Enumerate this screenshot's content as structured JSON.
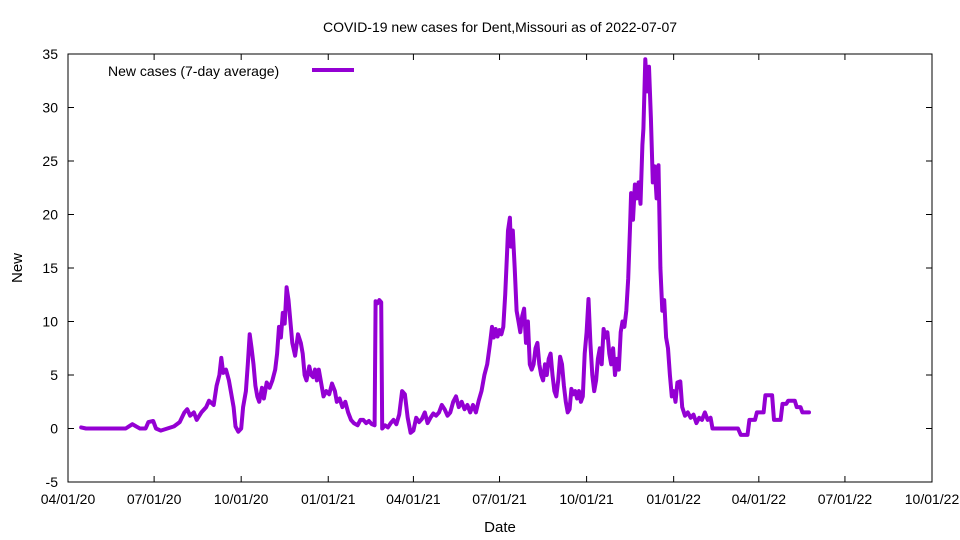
{
  "chart_data": {
    "type": "line",
    "title": "COVID-19 new cases for Dent,Missouri as of 2022-07-07",
    "xlabel": "Date",
    "ylabel": "New",
    "xlim": [
      "2020-04-01",
      "2022-10-01"
    ],
    "ylim": [
      -5,
      35
    ],
    "x_ticks": [
      "04/01/20",
      "07/01/20",
      "10/01/20",
      "01/01/21",
      "04/01/21",
      "07/01/21",
      "10/01/21",
      "01/01/22",
      "04/01/22",
      "07/01/22",
      "10/01/22"
    ],
    "y_ticks": [
      "-5",
      "0",
      "5",
      "10",
      "15",
      "20",
      "25",
      "30",
      "35"
    ],
    "grid": false,
    "legend_position": "top-left",
    "series": [
      {
        "name": "New cases (7-day average)",
        "color": "#9400D3",
        "points": [
          [
            "2020-04-15",
            0.1
          ],
          [
            "2020-04-20",
            0.0
          ],
          [
            "2020-05-01",
            0.0
          ],
          [
            "2020-05-15",
            0.0
          ],
          [
            "2020-06-01",
            0.0
          ],
          [
            "2020-06-08",
            0.4
          ],
          [
            "2020-06-12",
            0.2
          ],
          [
            "2020-06-16",
            0.0
          ],
          [
            "2020-06-22",
            0.0
          ],
          [
            "2020-06-25",
            0.6
          ],
          [
            "2020-06-30",
            0.7
          ],
          [
            "2020-07-03",
            0.0
          ],
          [
            "2020-07-08",
            -0.2
          ],
          [
            "2020-07-15",
            0.0
          ],
          [
            "2020-07-22",
            0.2
          ],
          [
            "2020-07-28",
            0.6
          ],
          [
            "2020-08-02",
            1.5
          ],
          [
            "2020-08-05",
            1.8
          ],
          [
            "2020-08-08",
            1.2
          ],
          [
            "2020-08-12",
            1.5
          ],
          [
            "2020-08-15",
            0.8
          ],
          [
            "2020-08-20",
            1.5
          ],
          [
            "2020-08-25",
            2.0
          ],
          [
            "2020-08-28",
            2.6
          ],
          [
            "2020-09-02",
            2.2
          ],
          [
            "2020-09-05",
            4.0
          ],
          [
            "2020-09-08",
            5.0
          ],
          [
            "2020-09-10",
            6.6
          ],
          [
            "2020-09-12",
            5.2
          ],
          [
            "2020-09-15",
            5.5
          ],
          [
            "2020-09-18",
            4.5
          ],
          [
            "2020-09-20",
            3.5
          ],
          [
            "2020-09-23",
            2.0
          ],
          [
            "2020-09-25",
            0.2
          ],
          [
            "2020-09-28",
            -0.3
          ],
          [
            "2020-10-01",
            0.0
          ],
          [
            "2020-10-03",
            2.0
          ],
          [
            "2020-10-06",
            3.5
          ],
          [
            "2020-10-08",
            6.0
          ],
          [
            "2020-10-10",
            8.8
          ],
          [
            "2020-10-12",
            7.5
          ],
          [
            "2020-10-14",
            6.0
          ],
          [
            "2020-10-16",
            4.0
          ],
          [
            "2020-10-18",
            3.0
          ],
          [
            "2020-10-20",
            2.5
          ],
          [
            "2020-10-23",
            3.8
          ],
          [
            "2020-10-25",
            2.8
          ],
          [
            "2020-10-28",
            4.3
          ],
          [
            "2020-10-31",
            3.8
          ],
          [
            "2020-11-03",
            4.5
          ],
          [
            "2020-11-06",
            5.5
          ],
          [
            "2020-11-08",
            7.0
          ],
          [
            "2020-11-10",
            9.5
          ],
          [
            "2020-11-12",
            8.5
          ],
          [
            "2020-11-14",
            10.8
          ],
          [
            "2020-11-16",
            9.8
          ],
          [
            "2020-11-18",
            13.2
          ],
          [
            "2020-11-20",
            12.0
          ],
          [
            "2020-11-22",
            10.0
          ],
          [
            "2020-11-24",
            8.0
          ],
          [
            "2020-11-27",
            6.8
          ],
          [
            "2020-11-30",
            8.8
          ],
          [
            "2020-12-03",
            8.0
          ],
          [
            "2020-12-05",
            7.0
          ],
          [
            "2020-12-07",
            5.0
          ],
          [
            "2020-12-09",
            4.5
          ],
          [
            "2020-12-12",
            5.8
          ],
          [
            "2020-12-14",
            5.0
          ],
          [
            "2020-12-16",
            4.8
          ],
          [
            "2020-12-18",
            5.5
          ],
          [
            "2020-12-20",
            4.5
          ],
          [
            "2020-12-22",
            5.5
          ],
          [
            "2020-12-24",
            4.5
          ],
          [
            "2020-12-27",
            3.0
          ],
          [
            "2020-12-30",
            3.5
          ],
          [
            "2021-01-02",
            3.2
          ],
          [
            "2021-01-05",
            4.2
          ],
          [
            "2021-01-08",
            3.5
          ],
          [
            "2021-01-10",
            2.5
          ],
          [
            "2021-01-13",
            2.8
          ],
          [
            "2021-01-16",
            2.0
          ],
          [
            "2021-01-19",
            2.5
          ],
          [
            "2021-01-22",
            1.5
          ],
          [
            "2021-01-25",
            0.8
          ],
          [
            "2021-01-28",
            0.5
          ],
          [
            "2021-02-01",
            0.3
          ],
          [
            "2021-02-04",
            0.8
          ],
          [
            "2021-02-07",
            0.8
          ],
          [
            "2021-02-10",
            0.5
          ],
          [
            "2021-02-13",
            0.7
          ],
          [
            "2021-02-16",
            0.4
          ],
          [
            "2021-02-19",
            0.3
          ],
          [
            "2021-02-20",
            11.9
          ],
          [
            "2021-02-22",
            11.7
          ],
          [
            "2021-02-24",
            12.0
          ],
          [
            "2021-02-26",
            11.8
          ],
          [
            "2021-02-27",
            0.0
          ],
          [
            "2021-03-02",
            0.3
          ],
          [
            "2021-03-05",
            0.1
          ],
          [
            "2021-03-08",
            0.5
          ],
          [
            "2021-03-11",
            0.8
          ],
          [
            "2021-03-14",
            0.4
          ],
          [
            "2021-03-17",
            1.3
          ],
          [
            "2021-03-20",
            3.5
          ],
          [
            "2021-03-23",
            3.2
          ],
          [
            "2021-03-26",
            1.0
          ],
          [
            "2021-03-29",
            -0.4
          ],
          [
            "2021-04-01",
            -0.2
          ],
          [
            "2021-04-04",
            1.0
          ],
          [
            "2021-04-07",
            0.6
          ],
          [
            "2021-04-10",
            0.9
          ],
          [
            "2021-04-13",
            1.5
          ],
          [
            "2021-04-16",
            0.5
          ],
          [
            "2021-04-19",
            1.0
          ],
          [
            "2021-04-22",
            1.4
          ],
          [
            "2021-04-25",
            1.2
          ],
          [
            "2021-04-28",
            1.5
          ],
          [
            "2021-05-01",
            2.2
          ],
          [
            "2021-05-04",
            1.8
          ],
          [
            "2021-05-07",
            1.2
          ],
          [
            "2021-05-10",
            1.5
          ],
          [
            "2021-05-13",
            2.5
          ],
          [
            "2021-05-16",
            3.0
          ],
          [
            "2021-05-19",
            2.0
          ],
          [
            "2021-05-22",
            2.5
          ],
          [
            "2021-05-25",
            1.8
          ],
          [
            "2021-05-28",
            2.2
          ],
          [
            "2021-05-31",
            1.5
          ],
          [
            "2021-06-03",
            2.2
          ],
          [
            "2021-06-06",
            1.5
          ],
          [
            "2021-06-09",
            2.6
          ],
          [
            "2021-06-12",
            3.5
          ],
          [
            "2021-06-15",
            5.0
          ],
          [
            "2021-06-18",
            6.0
          ],
          [
            "2021-06-21",
            8.0
          ],
          [
            "2021-06-23",
            9.5
          ],
          [
            "2021-06-25",
            8.5
          ],
          [
            "2021-06-27",
            9.3
          ],
          [
            "2021-06-29",
            8.6
          ],
          [
            "2021-07-01",
            9.2
          ],
          [
            "2021-07-03",
            8.8
          ],
          [
            "2021-07-05",
            9.5
          ],
          [
            "2021-07-07",
            12.5
          ],
          [
            "2021-07-09",
            16.5
          ],
          [
            "2021-07-10",
            18.5
          ],
          [
            "2021-07-12",
            19.7
          ],
          [
            "2021-07-13",
            17.0
          ],
          [
            "2021-07-15",
            18.5
          ],
          [
            "2021-07-17",
            15.0
          ],
          [
            "2021-07-19",
            11.0
          ],
          [
            "2021-07-21",
            10.0
          ],
          [
            "2021-07-23",
            9.0
          ],
          [
            "2021-07-25",
            10.5
          ],
          [
            "2021-07-27",
            11.2
          ],
          [
            "2021-07-29",
            8.0
          ],
          [
            "2021-07-31",
            10.0
          ],
          [
            "2021-08-02",
            6.0
          ],
          [
            "2021-08-04",
            5.5
          ],
          [
            "2021-08-06",
            6.0
          ],
          [
            "2021-08-08",
            7.5
          ],
          [
            "2021-08-10",
            8.0
          ],
          [
            "2021-08-12",
            6.0
          ],
          [
            "2021-08-14",
            5.0
          ],
          [
            "2021-08-16",
            4.5
          ],
          [
            "2021-08-18",
            6.0
          ],
          [
            "2021-08-20",
            5.0
          ],
          [
            "2021-08-22",
            6.5
          ],
          [
            "2021-08-24",
            7.0
          ],
          [
            "2021-08-26",
            5.0
          ],
          [
            "2021-08-28",
            3.5
          ],
          [
            "2021-08-30",
            3.0
          ],
          [
            "2021-09-01",
            4.5
          ],
          [
            "2021-09-03",
            6.7
          ],
          [
            "2021-09-05",
            6.0
          ],
          [
            "2021-09-07",
            4.0
          ],
          [
            "2021-09-09",
            2.5
          ],
          [
            "2021-09-11",
            1.5
          ],
          [
            "2021-09-13",
            1.8
          ],
          [
            "2021-09-15",
            3.7
          ],
          [
            "2021-09-17",
            3.2
          ],
          [
            "2021-09-19",
            3.5
          ],
          [
            "2021-09-21",
            2.8
          ],
          [
            "2021-09-23",
            3.5
          ],
          [
            "2021-09-25",
            2.5
          ],
          [
            "2021-09-27",
            3.0
          ],
          [
            "2021-09-29",
            7.0
          ],
          [
            "2021-10-01",
            9.0
          ],
          [
            "2021-10-03",
            12.1
          ],
          [
            "2021-10-05",
            8.0
          ],
          [
            "2021-10-07",
            5.0
          ],
          [
            "2021-10-09",
            3.5
          ],
          [
            "2021-10-11",
            4.5
          ],
          [
            "2021-10-13",
            6.5
          ],
          [
            "2021-10-15",
            7.5
          ],
          [
            "2021-10-17",
            6.0
          ],
          [
            "2021-10-19",
            9.3
          ],
          [
            "2021-10-21",
            8.5
          ],
          [
            "2021-10-23",
            9.0
          ],
          [
            "2021-10-25",
            7.0
          ],
          [
            "2021-10-27",
            6.0
          ],
          [
            "2021-10-29",
            7.5
          ],
          [
            "2021-10-31",
            5.0
          ],
          [
            "2021-11-02",
            6.5
          ],
          [
            "2021-11-04",
            5.5
          ],
          [
            "2021-11-06",
            9.0
          ],
          [
            "2021-11-08",
            10.0
          ],
          [
            "2021-11-10",
            9.5
          ],
          [
            "2021-11-12",
            11.0
          ],
          [
            "2021-11-14",
            14.0
          ],
          [
            "2021-11-16",
            19.0
          ],
          [
            "2021-11-17",
            22.0
          ],
          [
            "2021-11-19",
            19.5
          ],
          [
            "2021-11-21",
            22.8
          ],
          [
            "2021-11-23",
            21.5
          ],
          [
            "2021-11-25",
            23.0
          ],
          [
            "2021-11-27",
            21.0
          ],
          [
            "2021-11-29",
            26.5
          ],
          [
            "2021-11-30",
            28.0
          ],
          [
            "2021-12-02",
            34.5
          ],
          [
            "2021-12-04",
            31.5
          ],
          [
            "2021-12-06",
            33.8
          ],
          [
            "2021-12-08",
            29.0
          ],
          [
            "2021-12-10",
            23.0
          ],
          [
            "2021-12-12",
            24.5
          ],
          [
            "2021-12-14",
            21.5
          ],
          [
            "2021-12-16",
            24.6
          ],
          [
            "2021-12-18",
            15.0
          ],
          [
            "2021-12-20",
            11.0
          ],
          [
            "2021-12-22",
            12.0
          ],
          [
            "2021-12-24",
            8.5
          ],
          [
            "2021-12-26",
            7.5
          ],
          [
            "2021-12-28",
            5.0
          ],
          [
            "2021-12-30",
            3.0
          ],
          [
            "2022-01-01",
            3.5
          ],
          [
            "2022-01-03",
            2.5
          ],
          [
            "2022-01-05",
            4.3
          ],
          [
            "2022-01-08",
            4.4
          ],
          [
            "2022-01-10",
            2.0
          ],
          [
            "2022-01-13",
            1.2
          ],
          [
            "2022-01-16",
            1.5
          ],
          [
            "2022-01-19",
            1.0
          ],
          [
            "2022-01-22",
            1.3
          ],
          [
            "2022-01-25",
            0.5
          ],
          [
            "2022-01-28",
            1.0
          ],
          [
            "2022-01-31",
            0.8
          ],
          [
            "2022-02-03",
            1.5
          ],
          [
            "2022-02-06",
            0.8
          ],
          [
            "2022-02-09",
            1.0
          ],
          [
            "2022-02-11",
            0.0
          ],
          [
            "2022-02-20",
            0.0
          ],
          [
            "2022-03-01",
            0.0
          ],
          [
            "2022-03-10",
            0.0
          ],
          [
            "2022-03-13",
            -0.6
          ],
          [
            "2022-03-20",
            -0.6
          ],
          [
            "2022-03-22",
            0.8
          ],
          [
            "2022-03-28",
            0.8
          ],
          [
            "2022-03-30",
            1.5
          ],
          [
            "2022-04-06",
            1.5
          ],
          [
            "2022-04-08",
            3.1
          ],
          [
            "2022-04-15",
            3.1
          ],
          [
            "2022-04-17",
            0.8
          ],
          [
            "2022-04-24",
            0.8
          ],
          [
            "2022-04-26",
            2.3
          ],
          [
            "2022-04-30",
            2.3
          ],
          [
            "2022-05-02",
            2.6
          ],
          [
            "2022-05-09",
            2.6
          ],
          [
            "2022-05-11",
            2.0
          ],
          [
            "2022-05-15",
            2.0
          ],
          [
            "2022-05-17",
            1.5
          ],
          [
            "2022-05-24",
            1.5
          ]
        ]
      }
    ]
  }
}
